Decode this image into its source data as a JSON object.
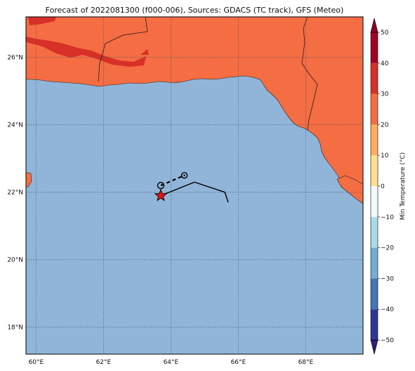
{
  "title": "Forecast of 2022081300 (f000-006), Sources: GDACS (TC track), GFS (Meteo)",
  "map": {
    "lon_range": [
      59.7,
      69.7
    ],
    "lat_range": [
      17.2,
      27.2
    ],
    "lon_ticks": [
      {
        "value": 60,
        "label": "60°E"
      },
      {
        "value": 62,
        "label": "62°E"
      },
      {
        "value": 64,
        "label": "64°E"
      },
      {
        "value": 66,
        "label": "66°E"
      },
      {
        "value": 68,
        "label": "68°E"
      }
    ],
    "lat_ticks": [
      {
        "value": 18,
        "label": "18°N"
      },
      {
        "value": 20,
        "label": "20°N"
      },
      {
        "value": 22,
        "label": "22°N"
      },
      {
        "value": 24,
        "label": "24°N"
      },
      {
        "value": 26,
        "label": "26°N"
      }
    ],
    "grid": "dotted",
    "colors": {
      "sea": "#91b5d9",
      "land_20_30": "#f46d43",
      "land_30_40": "#d73027",
      "border": "#000000"
    },
    "track": {
      "current_position": {
        "lon": 63.7,
        "lat": 21.9,
        "marker": "red-star"
      },
      "forecast_points": [
        {
          "lon": 63.7,
          "lat": 22.2,
          "marker": "open-circle"
        },
        {
          "lon": 64.4,
          "lat": 22.5,
          "marker": "circle-dot"
        }
      ],
      "past_track": [
        {
          "lon": 63.7,
          "lat": 21.9
        },
        {
          "lon": 64.7,
          "lat": 22.3
        },
        {
          "lon": 65.6,
          "lat": 22.0
        },
        {
          "lon": 65.7,
          "lat": 21.7
        }
      ]
    }
  },
  "colorbar": {
    "label": "Min Temperature (°C)",
    "ticks": [
      "50",
      "40",
      "30",
      "20",
      "10",
      "0",
      "−10",
      "−20",
      "−30",
      "−40",
      "−50"
    ],
    "bands": [
      {
        "from": 40,
        "to": 50,
        "color": "#a50026"
      },
      {
        "from": 30,
        "to": 40,
        "color": "#d73027"
      },
      {
        "from": 20,
        "to": 30,
        "color": "#f46d43"
      },
      {
        "from": 10,
        "to": 20,
        "color": "#fdae61"
      },
      {
        "from": 0,
        "to": 10,
        "color": "#fee090"
      },
      {
        "from": -10,
        "to": 0,
        "color": "#f2f9fc"
      },
      {
        "from": -20,
        "to": -10,
        "color": "#abd9e9"
      },
      {
        "from": -30,
        "to": -20,
        "color": "#74add1"
      },
      {
        "from": -40,
        "to": -30,
        "color": "#4575b4"
      },
      {
        "from": -50,
        "to": -40,
        "color": "#313695"
      }
    ],
    "extend_top_color": "#8b0024",
    "extend_bottom_color": "#2a1f7a"
  }
}
